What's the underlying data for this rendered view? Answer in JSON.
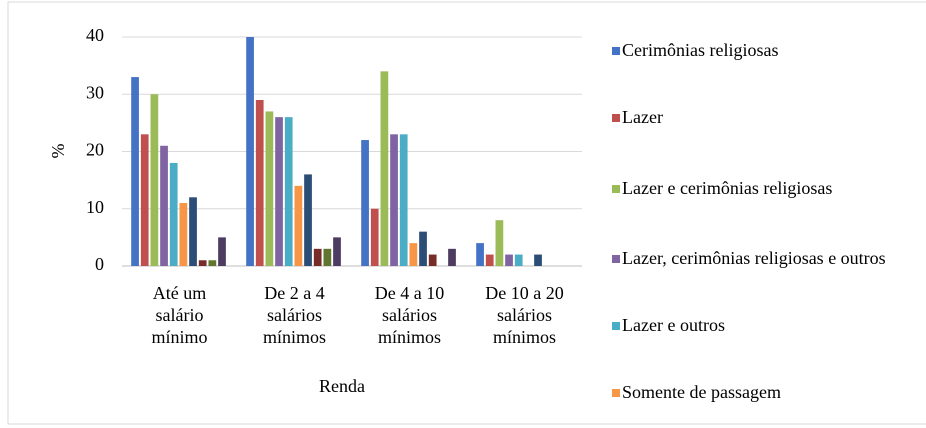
{
  "chart_data": {
    "type": "bar",
    "categories": [
      "Até um salário mínimo",
      "De 2 a 4 salários mínimos",
      "De 4 a 10 salários mínimos",
      "De 10 a 20 salários mínimos"
    ],
    "series": [
      {
        "name": "Cerimônias religiosas",
        "color": "#4472c4",
        "values": [
          33,
          40,
          22,
          4
        ]
      },
      {
        "name": "Lazer",
        "color": "#c0504d",
        "values": [
          23,
          29,
          10,
          2
        ]
      },
      {
        "name": "Lazer e cerimônias religiosas",
        "color": "#9bbb59",
        "values": [
          30,
          27,
          34,
          8
        ]
      },
      {
        "name": "Lazer, cerimônias religiosas e outros",
        "color": "#8064a2",
        "values": [
          21,
          26,
          23,
          2
        ]
      },
      {
        "name": "Lazer e outros",
        "color": "#4bacc6",
        "values": [
          18,
          26,
          23,
          2
        ]
      },
      {
        "name": "Somente de passagem",
        "color": "#f79646",
        "values": [
          11,
          14,
          4,
          0
        ]
      },
      {
        "color": "#2c4d75",
        "values": [
          12,
          16,
          6,
          2
        ]
      },
      {
        "color": "#772c2a",
        "values": [
          1,
          3,
          2,
          0
        ]
      },
      {
        "color": "#5f7530",
        "values": [
          1,
          3,
          0,
          0
        ]
      },
      {
        "color": "#4d3b62",
        "values": [
          5,
          5,
          3,
          0
        ]
      }
    ],
    "xlabel": "Renda",
    "ylabel": "%",
    "ylim": [
      0,
      40
    ],
    "yticks": [
      0,
      10,
      20,
      30,
      40
    ],
    "grid": true,
    "legend": "right"
  }
}
